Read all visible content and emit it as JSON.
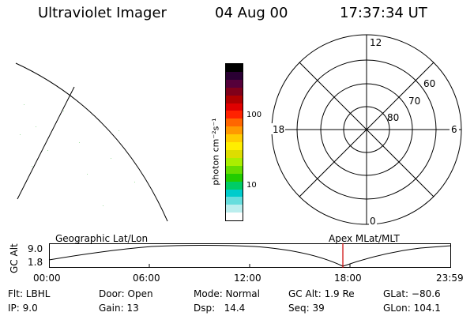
{
  "header": {
    "instrument": "Ultraviolet Imager",
    "date": "04 Aug 00",
    "time": "17:37:34 UT"
  },
  "colorbar": {
    "unit_label": "photon cm⁻²s⁻¹",
    "tick_labels": [
      "100",
      "10"
    ],
    "colors": [
      "#000000",
      "#2a0033",
      "#55003a",
      "#80001a",
      "#b00000",
      "#e00000",
      "#ff2200",
      "#ff6600",
      "#ff9900",
      "#ffcc00",
      "#ffee00",
      "#dddd00",
      "#aaee00",
      "#66dd00",
      "#22cc00",
      "#00cc66",
      "#00cccc",
      "#66dddd",
      "#bbeeee",
      "#ffffff"
    ]
  },
  "polar_plot": {
    "mlt_labels": {
      "top": "12",
      "right": "6",
      "bottom": "0",
      "left": "18"
    },
    "lat_labels": [
      "60",
      "70",
      "80"
    ]
  },
  "orbit_panel": {
    "ylabel": "GC Alt",
    "y_ticks": [
      "9.0",
      "1.8"
    ],
    "left_title": "Geographic Lat/Lon",
    "right_title": "Apex MLat/MLT",
    "time_ticks": [
      "00:00",
      "06:00",
      "12:00",
      "18:00",
      "23:59"
    ],
    "marker_color": "#cc0000"
  },
  "info": {
    "flt": "Flt: LBHL",
    "ip": "IP:  9.0",
    "door": "Door: Open",
    "gain": "Gain: 13",
    "mode": "Mode: Normal",
    "dsp": "Dsp:   14.4",
    "gcalt": "GC Alt: 1.9 Re",
    "seq": "Seq: 39",
    "glat": "GLat: −80.6",
    "glon": "GLon: 104.1"
  }
}
